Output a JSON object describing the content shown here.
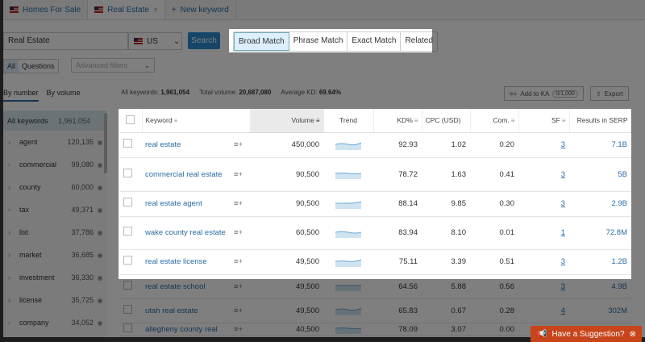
{
  "tabs": [
    {
      "label": "Homes For Sale"
    },
    {
      "label": "Real Estate",
      "close": "×"
    },
    {
      "label": "New keyword",
      "icon": "+"
    }
  ],
  "search": {
    "value": "Real Estate",
    "country": "US",
    "button": "Search"
  },
  "match_types": [
    "Broad Match",
    "Phrase Match",
    "Exact Match",
    "Related"
  ],
  "filters": {
    "all": "All",
    "questions": "Questions",
    "advanced": "Advanced filters"
  },
  "group_tabs": [
    "By number",
    "By volume"
  ],
  "stats": {
    "all_label": "All keywords:",
    "all": "1,961,054",
    "vol_label": "Total volume:",
    "vol": "20,687,080",
    "kd_label": "Average KD:",
    "kd": "69.64%"
  },
  "toolbar": {
    "add": "Add to KA",
    "add_count": "0/1,000",
    "export": "Export"
  },
  "sidebar": {
    "all_label": "All keywords",
    "all_count": "1,961,054",
    "items": [
      {
        "label": "agent",
        "count": "120,135"
      },
      {
        "label": "commercial",
        "count": "99,080"
      },
      {
        "label": "county",
        "count": "60,000"
      },
      {
        "label": "tax",
        "count": "49,371"
      },
      {
        "label": "list",
        "count": "37,786"
      },
      {
        "label": "market",
        "count": "36,685"
      },
      {
        "label": "investment",
        "count": "36,330"
      },
      {
        "label": "license",
        "count": "35,725"
      },
      {
        "label": "company",
        "count": "34,052"
      }
    ]
  },
  "table": {
    "headers": [
      "Keyword",
      "Volume",
      "Trend",
      "KD%",
      "CPC (USD)",
      "Com.",
      "SF",
      "Results in SERP"
    ],
    "rows": [
      {
        "kw": "real estate",
        "vol": "450,000",
        "kd": "92.93",
        "cpc": "1.02",
        "com": "0.20",
        "sf": "3",
        "res": "7.1B"
      },
      {
        "kw": "commercial real estate",
        "vol": "90,500",
        "kd": "78.72",
        "cpc": "1.63",
        "com": "0.41",
        "sf": "3",
        "res": "5B"
      },
      {
        "kw": "real estate agent",
        "vol": "90,500",
        "kd": "88.14",
        "cpc": "9.85",
        "com": "0.30",
        "sf": "3",
        "res": "2.9B"
      },
      {
        "kw": "wake county real estate",
        "vol": "60,500",
        "kd": "83.94",
        "cpc": "8.10",
        "com": "0.01",
        "sf": "1",
        "res": "72.8M"
      },
      {
        "kw": "real estate license",
        "vol": "49,500",
        "kd": "75.11",
        "cpc": "3.39",
        "com": "0.51",
        "sf": "3",
        "res": "1.2B"
      },
      {
        "kw": "real estate school",
        "vol": "49,500",
        "kd": "64.56",
        "cpc": "5.88",
        "com": "0.56",
        "sf": "3",
        "res": "4.9B"
      },
      {
        "kw": "utah real estate",
        "vol": "49,500",
        "kd": "65.83",
        "cpc": "0.67",
        "com": "0.28",
        "sf": "4",
        "res": "302M"
      },
      {
        "kw": "allegheny county real",
        "vol": "40,500",
        "kd": "78.09",
        "cpc": "3.07",
        "com": "0.00",
        "sf": "",
        "res": ""
      }
    ]
  },
  "suggestion": "Have a Suggestion?",
  "colors": {
    "accent": "#2d8bd0",
    "link": "#2b6da6",
    "suggest": "#c8441a",
    "overlay": "rgba(0,0,0,0.5)"
  }
}
